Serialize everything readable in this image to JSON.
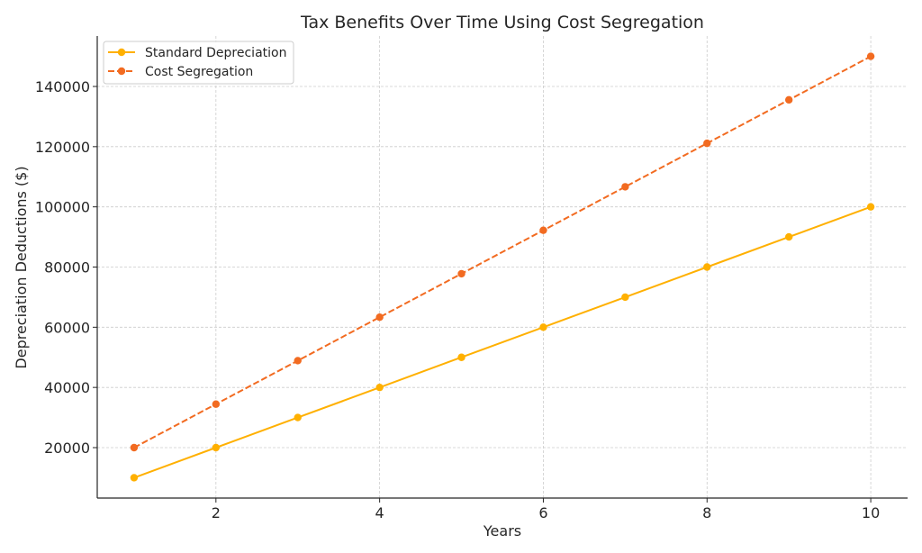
{
  "chart_data": {
    "type": "line",
    "title": "Tax Benefits Over Time Using Cost Segregation",
    "xlabel": "Years",
    "ylabel": "Depreciation Deductions ($)",
    "x": [
      1,
      2,
      3,
      4,
      5,
      6,
      7,
      8,
      9,
      10
    ],
    "xlim": [
      0.55,
      10.45
    ],
    "ylim": [
      3240,
      156760
    ],
    "xticks": [
      2,
      4,
      6,
      8,
      10
    ],
    "xtick_labels": [
      "2",
      "4",
      "6",
      "8",
      "10"
    ],
    "yticks": [
      20000,
      40000,
      60000,
      80000,
      100000,
      120000,
      140000
    ],
    "ytick_labels": [
      "20000",
      "40000",
      "60000",
      "80000",
      "100000",
      "120000",
      "140000"
    ],
    "grid": true,
    "legend_position": "top-left",
    "series": [
      {
        "name": "Standard Depreciation",
        "color": "#FFB000",
        "line_style": "solid",
        "marker": "circle",
        "values": [
          10000,
          20000,
          30000,
          40000,
          50000,
          60000,
          70000,
          80000,
          90000,
          100000
        ]
      },
      {
        "name": "Cost Segregation",
        "color": "#F26B21",
        "line_style": "dashed",
        "marker": "circle",
        "values": [
          20000,
          34444,
          48889,
          63333,
          77778,
          92222,
          106667,
          121111,
          135556,
          150000
        ]
      }
    ]
  }
}
